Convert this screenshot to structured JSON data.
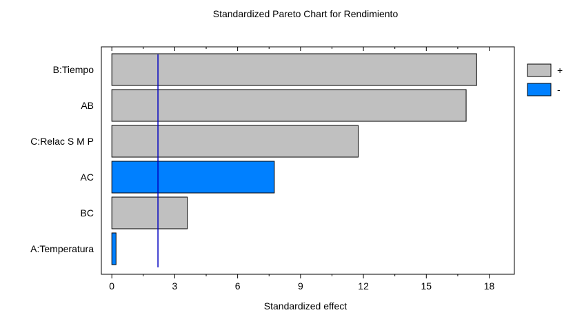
{
  "chart_data": {
    "type": "bar",
    "orientation": "horizontal",
    "title": "Standardized Pareto Chart for Rendimiento",
    "xlabel": "Standardized effect",
    "categories": [
      "B:Tiempo",
      "AB",
      "C:Relac S M P",
      "AC",
      "BC",
      "A:Temperatura"
    ],
    "values": [
      17.4,
      16.9,
      11.75,
      7.75,
      3.6,
      0.2
    ],
    "signs": [
      "+",
      "+",
      "+",
      "-",
      "+",
      "-"
    ],
    "xlim": [
      -0.5,
      19.2
    ],
    "xticks": [
      "0",
      "3",
      "6",
      "9",
      "12",
      "15",
      "18"
    ],
    "significance_line": 2.2,
    "legend": {
      "placement": "right",
      "items": [
        {
          "label": "+",
          "color": "#c0c0c0"
        },
        {
          "label": "-",
          "color": "#0080ff"
        }
      ]
    },
    "colors": {
      "positive": "#c0c0c0",
      "negative": "#0080ff",
      "reference_line": "#0000c0"
    }
  }
}
